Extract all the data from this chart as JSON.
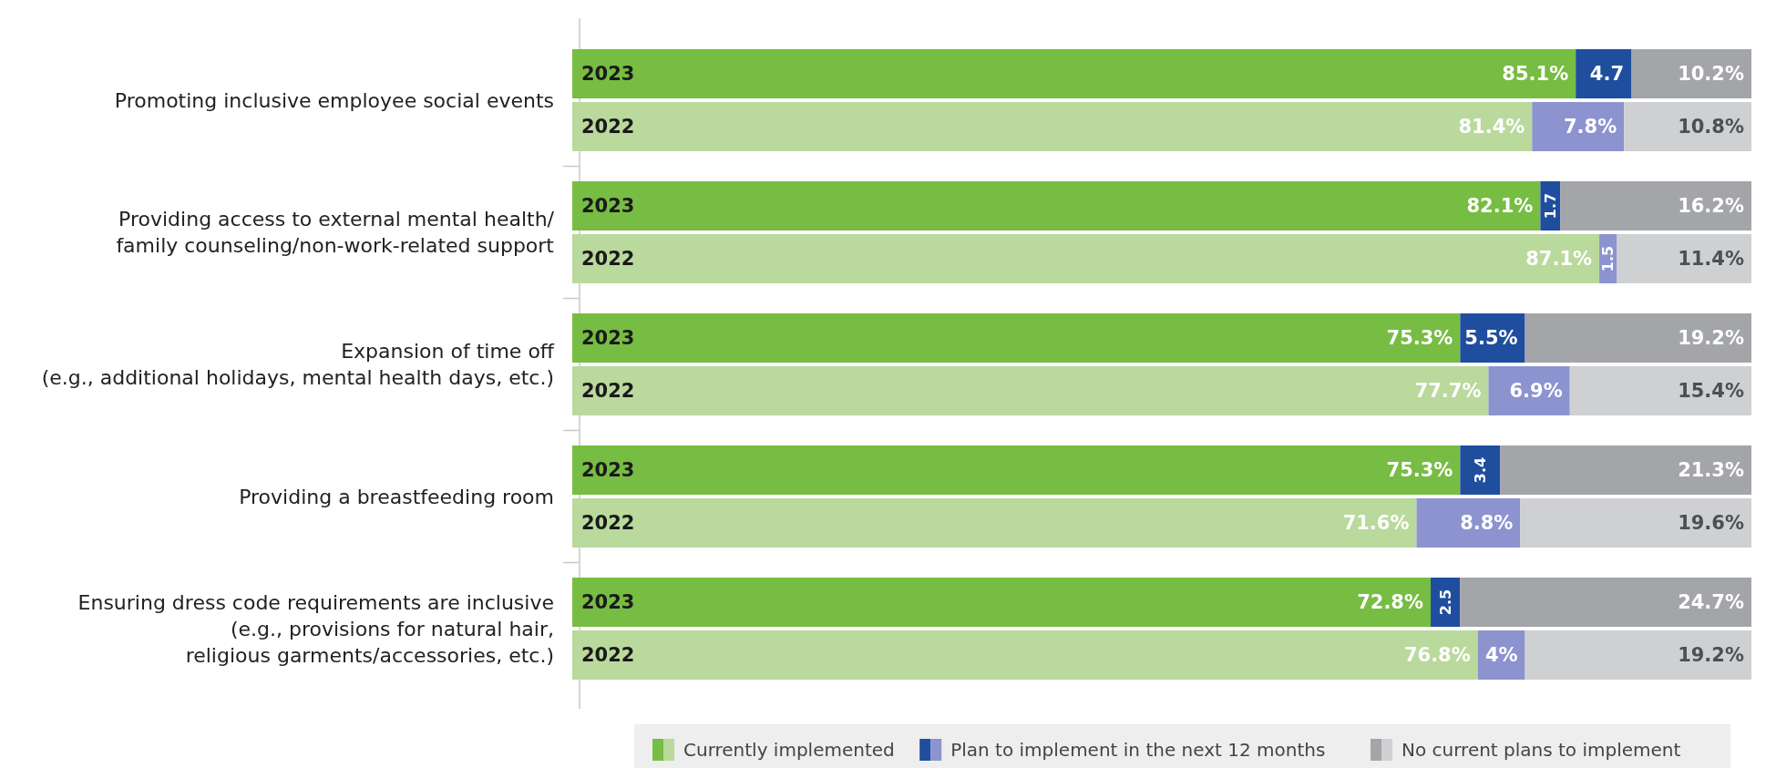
{
  "chart_data": {
    "type": "bar",
    "orientation": "horizontal",
    "stacked": true,
    "categories": [
      "2023",
      "2022",
      "2023",
      "2022",
      "2023",
      "2022",
      "2023",
      "2022",
      "2023",
      "2022"
    ],
    "xlim": [
      0,
      100
    ],
    "tick_labels": "y",
    "legend": "bottom right",
    "annotations": [
      "Promoting inclusive employee social events",
      "Providing access to external mental health/\nfamily counseling/non-work-related support",
      "Expansion of time off\n(e.g., additional holidays, mental health days, etc.)",
      "Providing a breastfeeding room",
      "Ensuring dress code requirements are inclusive\n(e.g., provisions for natural hair,\nreligious garments/accessories, etc.)"
    ],
    "series": [
      {
        "name": "Currently implemented",
        "colors": [
          "#77bc43",
          "#bad99c",
          "#77bc43",
          "#bad99c",
          "#77bc43",
          "#bad99c",
          "#77bc43",
          "#bad99c",
          "#77bc43",
          "#bad99c"
        ],
        "values": [
          85.1,
          81.4,
          82.1,
          87.1,
          75.3,
          77.7,
          75.3,
          71.6,
          72.8,
          76.8
        ],
        "value_labels": [
          "85.1%",
          "81.4%",
          "82.1%",
          "87.1%",
          "75.3%",
          "77.7%",
          "75.3%",
          "71.6%",
          "72.8%",
          "76.8%"
        ]
      },
      {
        "name": "Plan to implement in the next 12 months",
        "colors": [
          "#1f4e9f",
          "#8c93cf",
          "#1f4e9f",
          "#8c93cf",
          "#1f4e9f",
          "#8c93cf",
          "#1f4e9f",
          "#8c93cf",
          "#1f4e9f",
          "#8c93cf"
        ],
        "values": [
          4.7,
          7.8,
          1.7,
          1.5,
          5.5,
          6.9,
          3.4,
          8.8,
          2.5,
          4
        ],
        "value_labels": [
          "4.7",
          "7.8%",
          "1.7",
          "1.5",
          "5.5%",
          "6.9%",
          "3.4",
          "8.8%",
          "2.5",
          "4%"
        ]
      },
      {
        "name": "No current plans to implement",
        "colors": [
          "#a3a5a8",
          "#cfd0d2",
          "#a3a5a8",
          "#cfd0d2",
          "#a3a5a8",
          "#cfd0d2",
          "#a3a5a8",
          "#cfd0d2",
          "#a3a5a8",
          "#cfd0d2"
        ],
        "values": [
          10.2,
          10.8,
          16.2,
          11.4,
          19.2,
          15.4,
          21.3,
          19.6,
          24.7,
          19.2
        ],
        "value_labels": [
          "10.2%",
          "10.8%",
          "16.2%",
          "11.4%",
          "19.2%",
          "15.4%",
          "21.3%",
          "19.6%",
          "24.7%",
          "19.2%"
        ]
      }
    ]
  }
}
